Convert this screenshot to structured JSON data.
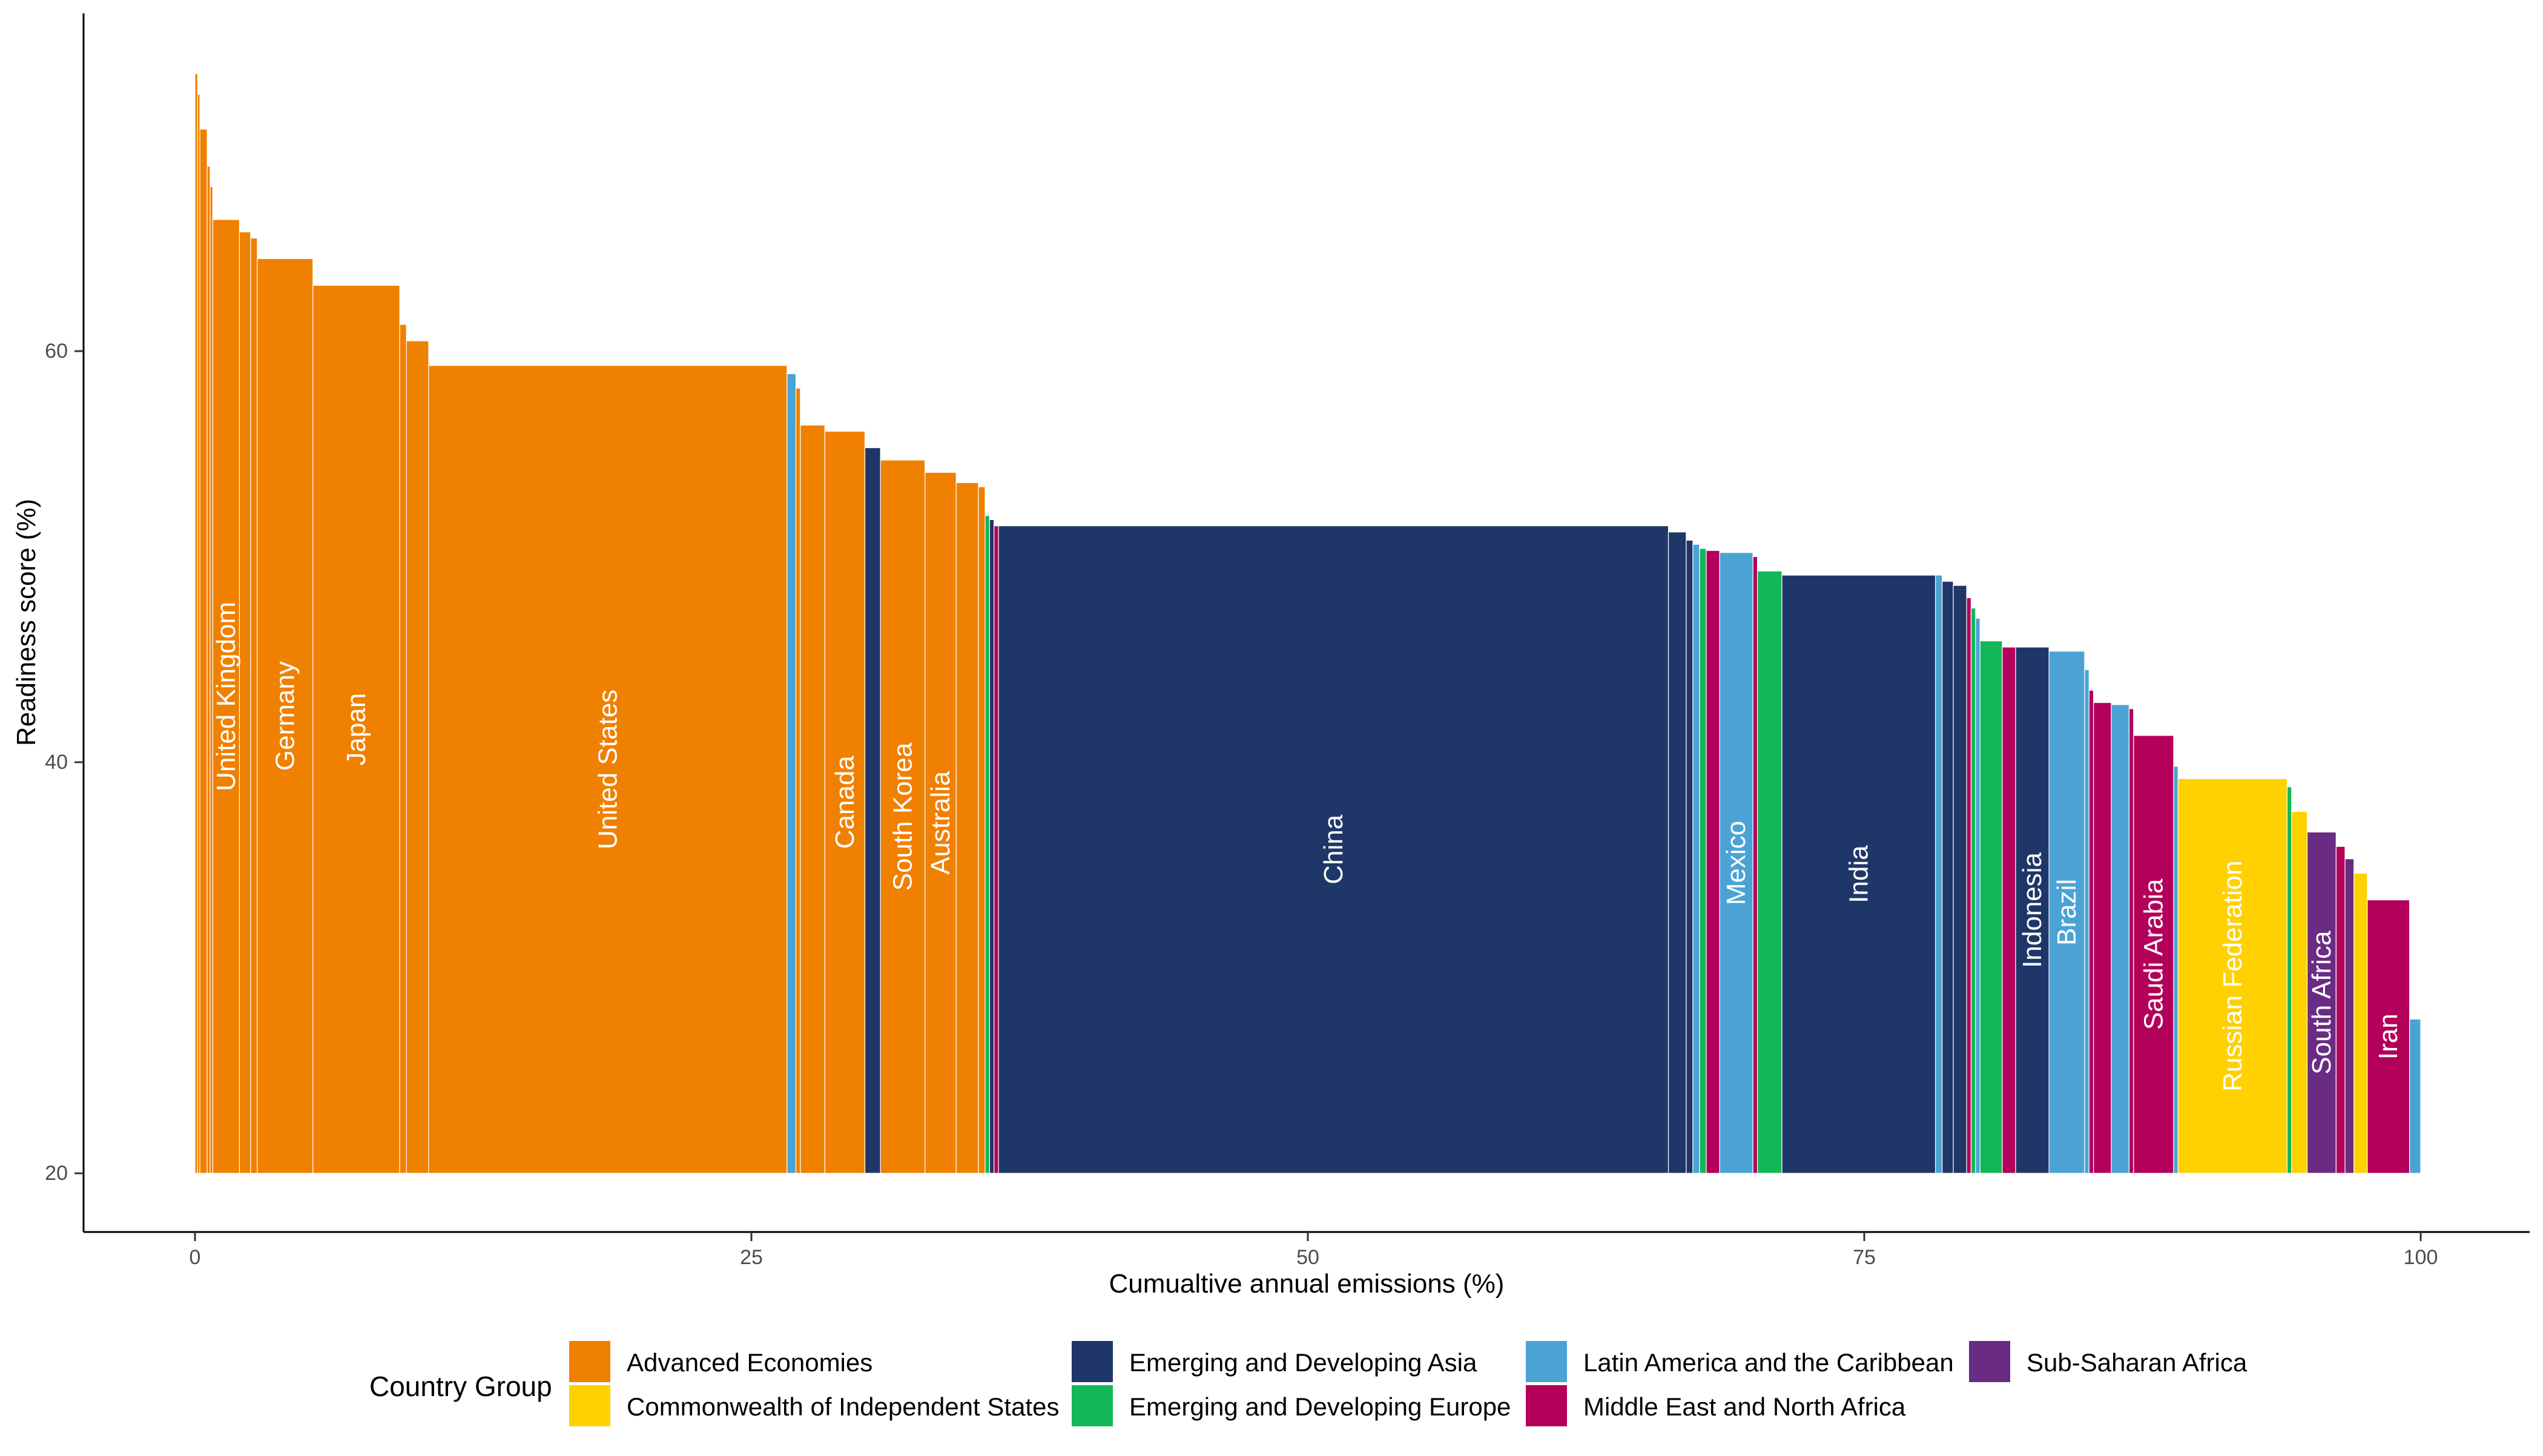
{
  "chart_data": {
    "type": "bar",
    "subtype": "variable-width (marimekko)",
    "xlabel": "Cumualtive annual emissions (%)",
    "ylabel": "Readiness score (%)",
    "xlim": [
      0,
      100
    ],
    "ylim": [
      20,
      74
    ],
    "x_ticks": [
      0,
      25,
      50,
      75,
      100
    ],
    "y_ticks": [
      20,
      40,
      60
    ],
    "grid": false,
    "legend_title": "Country Group",
    "legend_position": "bottom",
    "groups": [
      {
        "key": "AE",
        "name": "Advanced Economies",
        "color": "#F08000"
      },
      {
        "key": "CIS",
        "name": "Commonwealth of Independent States",
        "color": "#FFD100"
      },
      {
        "key": "EDA",
        "name": "Emerging and Developing Asia",
        "color": "#1F3768"
      },
      {
        "key": "EDE",
        "name": "Emerging and Developing Europe",
        "color": "#12B757"
      },
      {
        "key": "LAC",
        "name": "Latin America and the Caribbean",
        "color": "#4BA3D5"
      },
      {
        "key": "MENA",
        "name": "Middle East and North Africa",
        "color": "#B3005A"
      },
      {
        "key": "SSA",
        "name": "Sub-Saharan Africa",
        "color": "#6A2C83"
      }
    ],
    "bars": [
      {
        "x0": 0.0,
        "x1": 0.12,
        "y": 73.5,
        "g": "AE"
      },
      {
        "x0": 0.12,
        "x1": 0.22,
        "y": 72.5,
        "g": "AE"
      },
      {
        "x0": 0.22,
        "x1": 0.55,
        "y": 70.8,
        "g": "AE"
      },
      {
        "x0": 0.55,
        "x1": 0.68,
        "y": 69.0,
        "g": "AE"
      },
      {
        "x0": 0.68,
        "x1": 0.8,
        "y": 68.0,
        "g": "AE"
      },
      {
        "x0": 0.8,
        "x1": 2.0,
        "y": 66.4,
        "g": "AE",
        "label": "United Kingdom"
      },
      {
        "x0": 2.0,
        "x1": 2.5,
        "y": 65.8,
        "g": "AE"
      },
      {
        "x0": 2.5,
        "x1": 2.8,
        "y": 65.5,
        "g": "AE"
      },
      {
        "x0": 2.8,
        "x1": 5.3,
        "y": 64.5,
        "g": "AE",
        "label": "Germany"
      },
      {
        "x0": 5.3,
        "x1": 9.2,
        "y": 63.2,
        "g": "AE",
        "label": "Japan"
      },
      {
        "x0": 9.2,
        "x1": 9.5,
        "y": 61.3,
        "g": "AE"
      },
      {
        "x0": 9.5,
        "x1": 10.5,
        "y": 60.5,
        "g": "AE"
      },
      {
        "x0": 10.5,
        "x1": 26.6,
        "y": 59.3,
        "g": "AE",
        "label": "United States"
      },
      {
        "x0": 26.6,
        "x1": 27.0,
        "y": 58.9,
        "g": "LAC"
      },
      {
        "x0": 27.0,
        "x1": 27.2,
        "y": 58.2,
        "g": "AE"
      },
      {
        "x0": 27.2,
        "x1": 28.3,
        "y": 56.4,
        "g": "AE"
      },
      {
        "x0": 28.3,
        "x1": 30.1,
        "y": 56.1,
        "g": "AE",
        "label": "Canada"
      },
      {
        "x0": 30.1,
        "x1": 30.8,
        "y": 55.3,
        "g": "EDA"
      },
      {
        "x0": 30.8,
        "x1": 32.8,
        "y": 54.7,
        "g": "AE",
        "label": "South Korea"
      },
      {
        "x0": 32.8,
        "x1": 34.2,
        "y": 54.1,
        "g": "AE",
        "label": "Australia"
      },
      {
        "x0": 34.2,
        "x1": 35.2,
        "y": 53.6,
        "g": "AE"
      },
      {
        "x0": 35.2,
        "x1": 35.5,
        "y": 53.4,
        "g": "AE"
      },
      {
        "x0": 35.5,
        "x1": 35.7,
        "y": 52.0,
        "g": "EDE"
      },
      {
        "x0": 35.7,
        "x1": 35.9,
        "y": 51.8,
        "g": "EDA"
      },
      {
        "x0": 35.9,
        "x1": 36.1,
        "y": 51.5,
        "g": "MENA"
      },
      {
        "x0": 36.1,
        "x1": 66.2,
        "y": 51.5,
        "g": "EDA",
        "label": "China"
      },
      {
        "x0": 66.2,
        "x1": 67.0,
        "y": 51.2,
        "g": "EDA"
      },
      {
        "x0": 67.0,
        "x1": 67.3,
        "y": 50.8,
        "g": "EDA"
      },
      {
        "x0": 67.3,
        "x1": 67.6,
        "y": 50.6,
        "g": "LAC"
      },
      {
        "x0": 67.6,
        "x1": 67.9,
        "y": 50.4,
        "g": "EDE"
      },
      {
        "x0": 67.9,
        "x1": 68.5,
        "y": 50.3,
        "g": "MENA"
      },
      {
        "x0": 68.5,
        "x1": 70.0,
        "y": 50.2,
        "g": "LAC",
        "label": "Mexico"
      },
      {
        "x0": 70.0,
        "x1": 70.2,
        "y": 50.0,
        "g": "MENA"
      },
      {
        "x0": 70.2,
        "x1": 71.3,
        "y": 49.3,
        "g": "EDE"
      },
      {
        "x0": 71.3,
        "x1": 78.2,
        "y": 49.1,
        "g": "EDA",
        "label": "India"
      },
      {
        "x0": 78.2,
        "x1": 78.5,
        "y": 49.1,
        "g": "LAC"
      },
      {
        "x0": 78.5,
        "x1": 79.0,
        "y": 48.8,
        "g": "EDA"
      },
      {
        "x0": 79.0,
        "x1": 79.6,
        "y": 48.6,
        "g": "EDA"
      },
      {
        "x0": 79.6,
        "x1": 79.8,
        "y": 48.0,
        "g": "MENA"
      },
      {
        "x0": 79.8,
        "x1": 80.0,
        "y": 47.5,
        "g": "EDE"
      },
      {
        "x0": 80.0,
        "x1": 80.2,
        "y": 47.0,
        "g": "LAC"
      },
      {
        "x0": 80.2,
        "x1": 81.2,
        "y": 45.9,
        "g": "EDE"
      },
      {
        "x0": 81.2,
        "x1": 81.8,
        "y": 45.6,
        "g": "MENA"
      },
      {
        "x0": 81.8,
        "x1": 83.3,
        "y": 45.6,
        "g": "EDA",
        "label": "Indonesia"
      },
      {
        "x0": 83.3,
        "x1": 84.9,
        "y": 45.4,
        "g": "LAC",
        "label": "Brazil"
      },
      {
        "x0": 84.9,
        "x1": 85.1,
        "y": 44.5,
        "g": "LAC"
      },
      {
        "x0": 85.1,
        "x1": 85.3,
        "y": 43.5,
        "g": "MENA"
      },
      {
        "x0": 85.3,
        "x1": 86.1,
        "y": 42.9,
        "g": "MENA"
      },
      {
        "x0": 86.1,
        "x1": 86.9,
        "y": 42.8,
        "g": "LAC"
      },
      {
        "x0": 86.9,
        "x1": 87.1,
        "y": 42.6,
        "g": "MENA"
      },
      {
        "x0": 87.1,
        "x1": 88.9,
        "y": 41.3,
        "g": "MENA",
        "label": "Saudi Arabia"
      },
      {
        "x0": 88.9,
        "x1": 89.1,
        "y": 39.8,
        "g": "LAC"
      },
      {
        "x0": 89.1,
        "x1": 94.0,
        "y": 39.2,
        "g": "CIS",
        "label": "Russian Federation"
      },
      {
        "x0": 94.0,
        "x1": 94.2,
        "y": 38.8,
        "g": "EDE"
      },
      {
        "x0": 94.2,
        "x1": 94.9,
        "y": 37.6,
        "g": "CIS"
      },
      {
        "x0": 94.9,
        "x1": 96.2,
        "y": 36.6,
        "g": "SSA",
        "label": "South Africa"
      },
      {
        "x0": 96.2,
        "x1": 96.6,
        "y": 35.9,
        "g": "MENA"
      },
      {
        "x0": 96.6,
        "x1": 97.0,
        "y": 35.3,
        "g": "SSA"
      },
      {
        "x0": 97.0,
        "x1": 97.6,
        "y": 34.6,
        "g": "CIS"
      },
      {
        "x0": 97.6,
        "x1": 99.5,
        "y": 33.3,
        "g": "MENA",
        "label": "Iran"
      },
      {
        "x0": 99.5,
        "x1": 100.0,
        "y": 27.5,
        "g": "LAC"
      }
    ]
  },
  "legend": {
    "title": "Country Group",
    "items": [
      {
        "label": "Advanced Economies",
        "color": "#F08000"
      },
      {
        "label": "Commonwealth of Independent States",
        "color": "#FFD100"
      },
      {
        "label": "Emerging and Developing Asia",
        "color": "#1F3768"
      },
      {
        "label": "Emerging and Developing Europe",
        "color": "#12B757"
      },
      {
        "label": "Latin America and the Caribbean",
        "color": "#4BA3D5"
      },
      {
        "label": "Middle East and North Africa",
        "color": "#B3005A"
      },
      {
        "label": "Sub-Saharan Africa",
        "color": "#6A2C83"
      }
    ]
  }
}
